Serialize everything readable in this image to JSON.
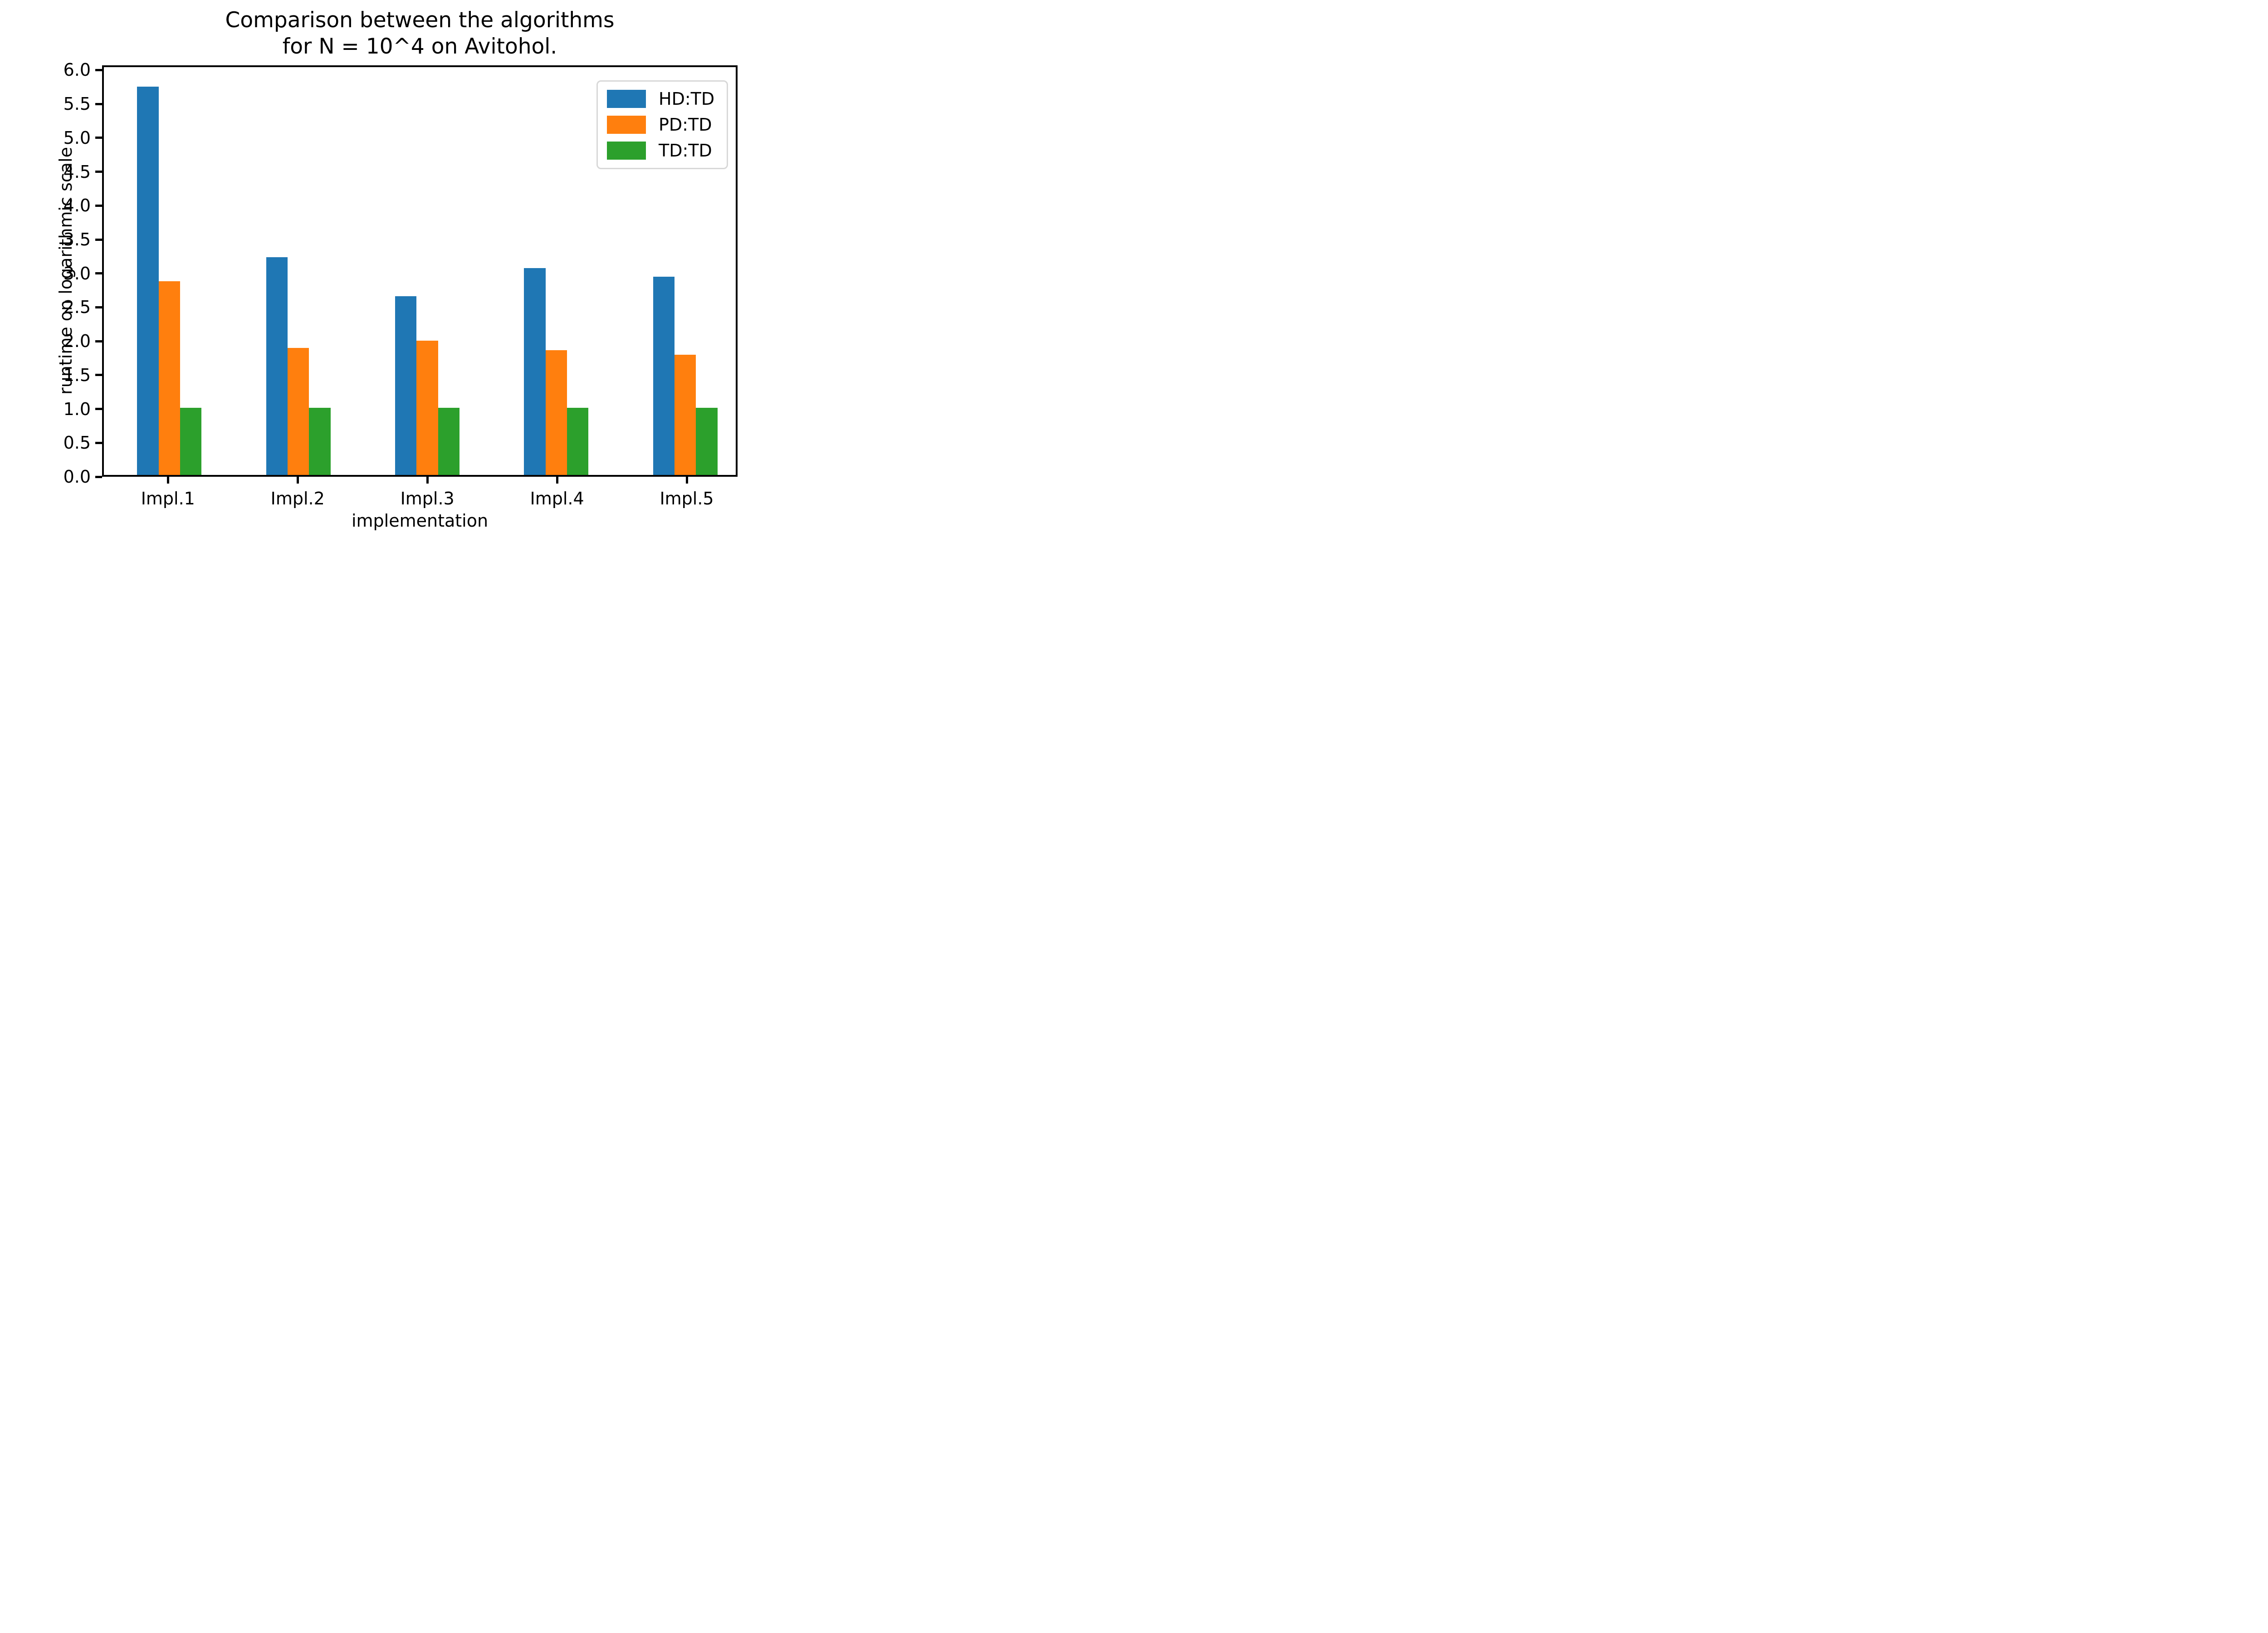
{
  "figure": {
    "title_line1": "Comparison between the algorithms",
    "title_line2": "for N = 10^4 on Avitohol."
  },
  "chart_data": {
    "type": "bar",
    "categories": [
      "Impl.1",
      "Impl.2",
      "Impl.3",
      "Impl.4",
      "Impl.5"
    ],
    "series": [
      {
        "name": "HD:TD",
        "color": "#1f77b4",
        "values": [
          5.78,
          3.24,
          2.66,
          3.08,
          2.95
        ]
      },
      {
        "name": "PD:TD",
        "color": "#ff7f0e",
        "values": [
          2.88,
          1.89,
          2.0,
          1.86,
          1.79
        ]
      },
      {
        "name": "TD:TD",
        "color": "#2ca02c",
        "values": [
          1.0,
          1.0,
          1.0,
          1.0,
          1.0
        ]
      }
    ],
    "title": "Comparison between the algorithms for N = 10^4 on Avitohol.",
    "xlabel": "implementation",
    "ylabel": "runtime on logarithmic scale",
    "ylim": [
      0,
      6.07
    ],
    "yticks": [
      "0.0",
      "0.5",
      "1.0",
      "1.5",
      "2.0",
      "2.5",
      "3.0",
      "3.5",
      "4.0",
      "4.5",
      "5.0",
      "5.5",
      "6.0"
    ],
    "legend_position": "upper right",
    "grid": false,
    "frame": true,
    "axis_color": "#000000",
    "background_color": "#ffffff"
  }
}
